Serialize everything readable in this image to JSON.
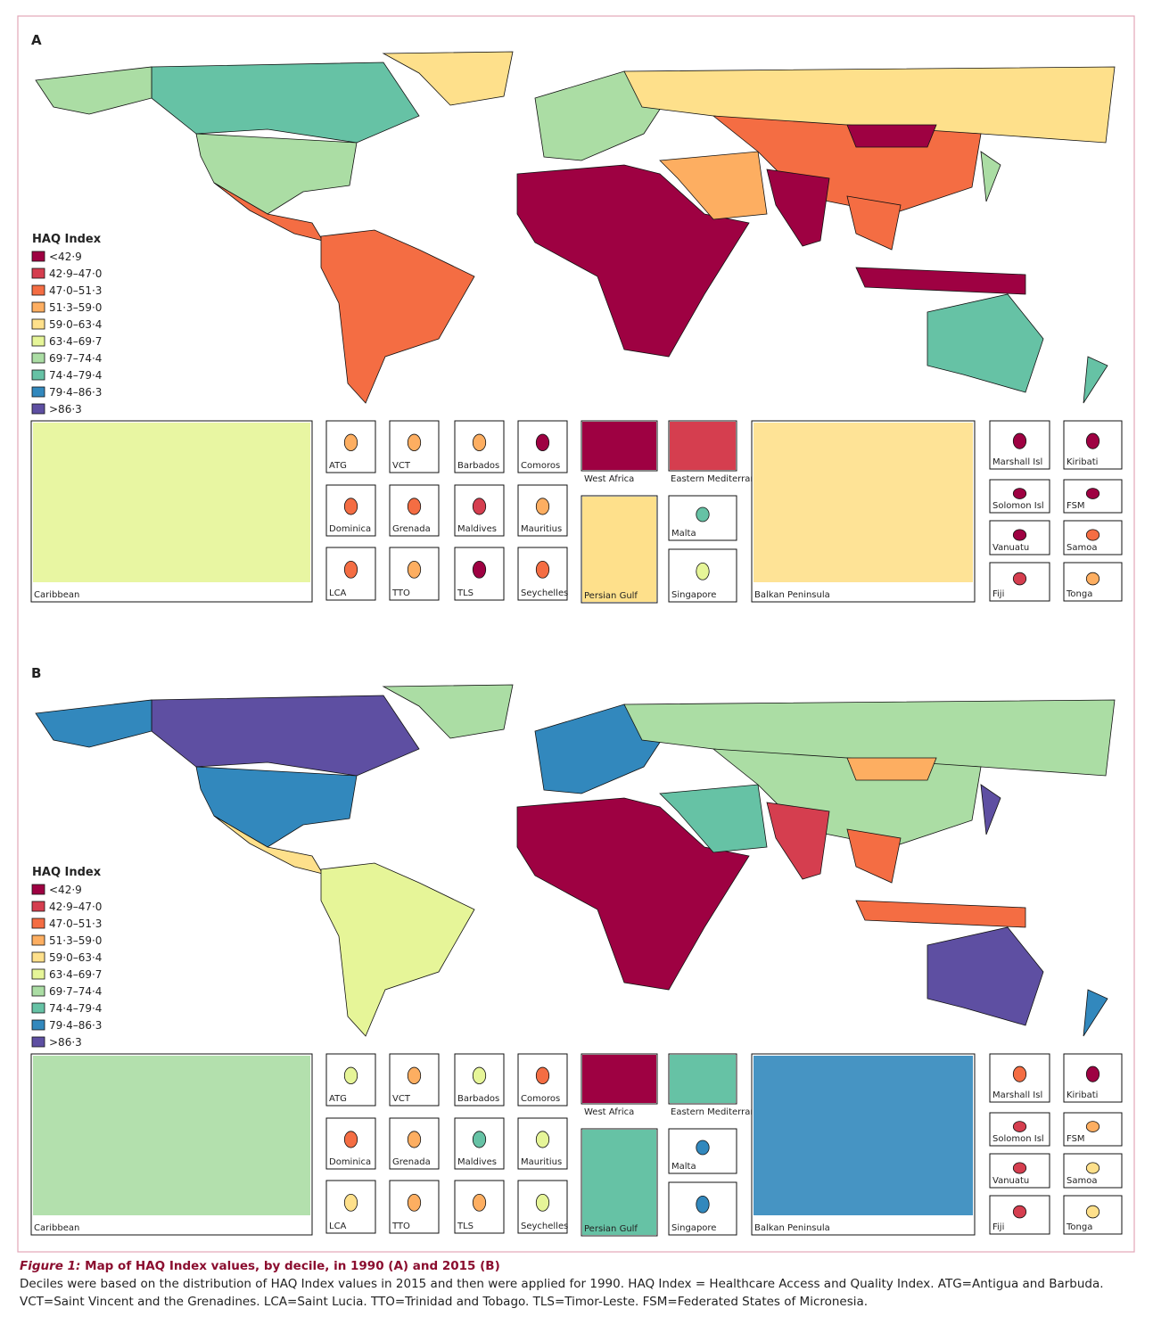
{
  "panels": [
    {
      "label": "A",
      "legend": {
        "title": "HAQ Index",
        "items": [
          {
            "label": "<42·9",
            "color": "#9e0142"
          },
          {
            "label": "42·9–47·0",
            "color": "#d53e4f"
          },
          {
            "label": "47·0–51·3",
            "color": "#f46d43"
          },
          {
            "label": "51·3–59·0",
            "color": "#fdae61"
          },
          {
            "label": "59·0–63·4",
            "color": "#fee08b"
          },
          {
            "label": "63·4–69·7",
            "color": "#e6f598"
          },
          {
            "label": "69·7–74·4",
            "color": "#abdda4"
          },
          {
            "label": "74·4–79·4",
            "color": "#66c2a5"
          },
          {
            "label": "79·4–86·3",
            "color": "#3288bd"
          },
          {
            "label": ">86·3",
            "color": "#5e4fa2"
          }
        ]
      },
      "insets": [
        "Caribbean",
        "ATG",
        "VCT",
        "Barbados",
        "Comoros",
        "Dominica",
        "Grenada",
        "Maldives",
        "Mauritius",
        "LCA",
        "TTO",
        "TLS",
        "Seychelles",
        "West Africa",
        "Eastern Mediterranean",
        "Persian Gulf",
        "Malta",
        "Singapore",
        "Balkan Peninsula",
        "Marshall Isl",
        "Kiribati",
        "Solomon Isl",
        "FSM",
        "Vanuatu",
        "Samoa",
        "Fiji",
        "Tonga"
      ]
    },
    {
      "label": "B",
      "legend": {
        "title": "HAQ Index",
        "items": [
          {
            "label": "<42·9",
            "color": "#9e0142"
          },
          {
            "label": "42·9–47·0",
            "color": "#d53e4f"
          },
          {
            "label": "47·0–51·3",
            "color": "#f46d43"
          },
          {
            "label": "51·3–59·0",
            "color": "#fdae61"
          },
          {
            "label": "59·0–63·4",
            "color": "#fee08b"
          },
          {
            "label": "63·4–69·7",
            "color": "#e6f598"
          },
          {
            "label": "69·7–74·4",
            "color": "#abdda4"
          },
          {
            "label": "74·4–79·4",
            "color": "#66c2a5"
          },
          {
            "label": "79·4–86·3",
            "color": "#3288bd"
          },
          {
            "label": ">86·3",
            "color": "#5e4fa2"
          }
        ]
      },
      "insets": [
        "Caribbean",
        "ATG",
        "VCT",
        "Barbados",
        "Comoros",
        "Dominica",
        "Grenada",
        "Maldives",
        "Mauritius",
        "LCA",
        "TTO",
        "TLS",
        "Seychelles",
        "West Africa",
        "Eastern Mediterranean",
        "Persian Gulf",
        "Malta",
        "Singapore",
        "Balkan Peninsula",
        "Marshall Isl",
        "Kiribati",
        "Solomon Isl",
        "FSM",
        "Vanuatu",
        "Samoa",
        "Fiji",
        "Tonga"
      ]
    }
  ],
  "caption": {
    "figure_label": "Figure 1:",
    "title": "Map of HAQ Index values, by decile, in 1990 (A) and 2015 (B)",
    "text": "Deciles were based on the distribution of HAQ Index values in 2015 and then were applied for 1990. HAQ Index = Healthcare Access and Quality Index. ATG=Antigua and Barbuda. VCT=Saint Vincent and the Grenadines. LCA=Saint Lucia. TTO=Trinidad and Tobago. TLS=Timor-Leste. FSM=Federated States of Micronesia."
  }
}
